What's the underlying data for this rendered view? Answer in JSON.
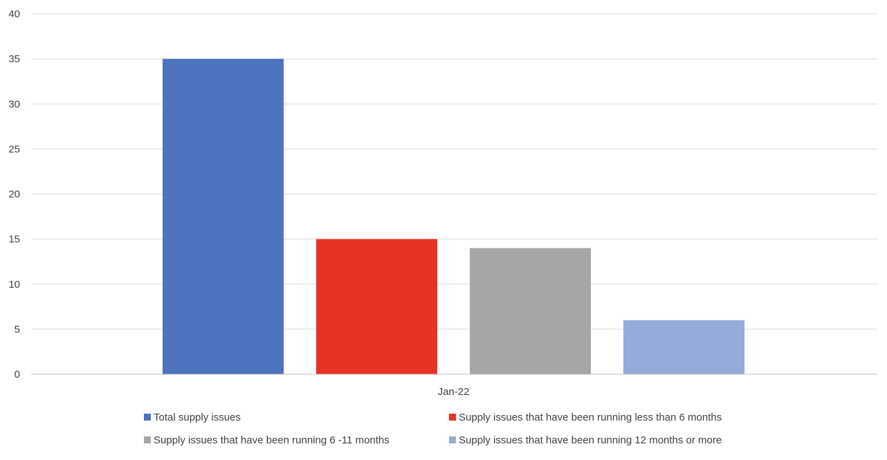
{
  "chart_data": {
    "type": "bar",
    "categories": [
      "Jan-22"
    ],
    "series": [
      {
        "name": "Total supply issues",
        "values": [
          35
        ],
        "color": "#4E74BF"
      },
      {
        "name": "Supply issues that have been running less than 6 months",
        "values": [
          15
        ],
        "color": "#E83223"
      },
      {
        "name": "Supply issues that have been running 6 -11 months",
        "values": [
          14
        ],
        "color": "#A6A6A6"
      },
      {
        "name": "Supply issues that have been running 12 months or more",
        "values": [
          6
        ],
        "color": "#95ABD9"
      }
    ],
    "ylim": [
      0,
      40
    ],
    "yticks": [
      0,
      5,
      10,
      15,
      20,
      25,
      30,
      35,
      40
    ],
    "grid": true,
    "legend_position": "bottom",
    "title": "",
    "xlabel": "",
    "ylabel": ""
  }
}
